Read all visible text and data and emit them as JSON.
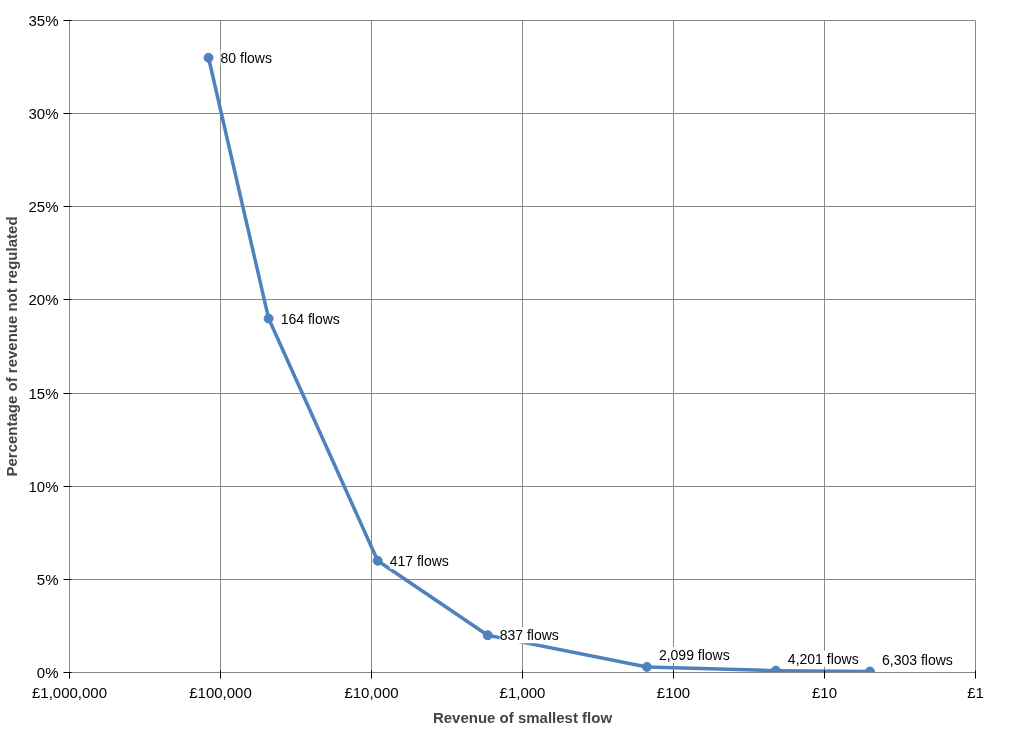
{
  "chart_data": {
    "type": "line",
    "xlabel": "Revenue of smallest flow",
    "ylabel": "Percentage of revenue not regulated",
    "log": "x",
    "x": [
      120000,
      48000,
      9100,
      1700,
      150,
      21,
      5
    ],
    "series": [
      {
        "color": "#4f81bd",
        "values": [
          33,
          19,
          6,
          2,
          0.3,
          0.1,
          0.05
        ]
      }
    ],
    "xlim": [
      1000000,
      1
    ],
    "xticks": [
      {
        "value": 1000000,
        "label": "£1,000,000"
      },
      {
        "value": 100000,
        "label": "£100,000"
      },
      {
        "value": 10000,
        "label": "£10,000"
      },
      {
        "value": 1000,
        "label": "£1,000"
      },
      {
        "value": 100,
        "label": "£100"
      },
      {
        "value": 10,
        "label": "£10"
      },
      {
        "value": 1,
        "label": "£1"
      }
    ],
    "ylim": [
      0,
      35
    ],
    "yticks": [
      {
        "value": 0,
        "label": "0%"
      },
      {
        "value": 5,
        "label": "5%"
      },
      {
        "value": 10,
        "label": "10%"
      },
      {
        "value": 15,
        "label": "15%"
      },
      {
        "value": 20,
        "label": "20%"
      },
      {
        "value": 25,
        "label": "25%"
      },
      {
        "value": 30,
        "label": "30%"
      },
      {
        "value": 35,
        "label": "35%"
      }
    ],
    "annotations": [
      {
        "text": "80 flows",
        "x": 120000,
        "y": 33
      },
      {
        "text": "164 flows",
        "x": 48000,
        "y": 19
      },
      {
        "text": "417 flows",
        "x": 9100,
        "y": 6
      },
      {
        "text": "837 flows",
        "x": 1700,
        "y": 2
      },
      {
        "text": "2,099 flows",
        "x": 150,
        "y": 0.3
      },
      {
        "text": "4,201 flows",
        "x": 21,
        "y": 0.1
      },
      {
        "text": "6,303 flows",
        "x": 5,
        "y": 0.05
      }
    ],
    "grid": true,
    "marker": "circle",
    "line_style": "solid"
  }
}
